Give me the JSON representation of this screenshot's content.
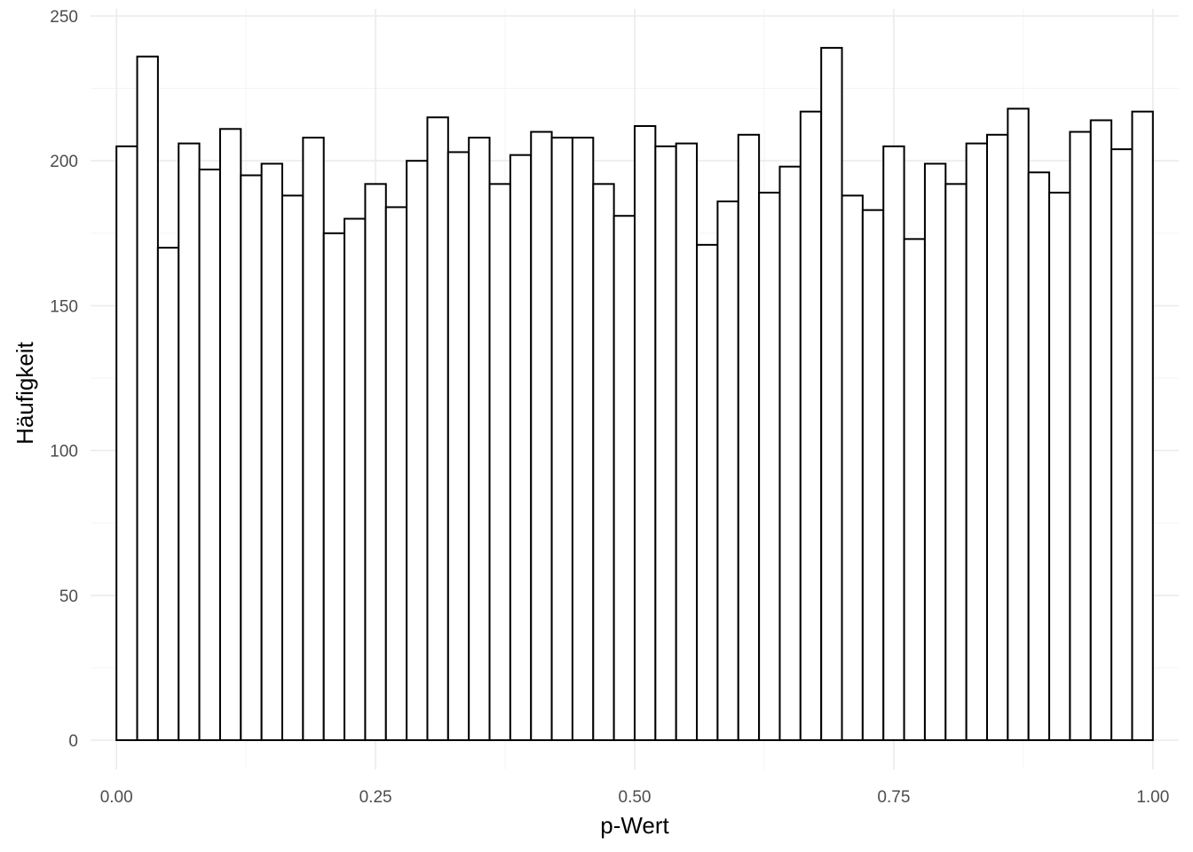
{
  "chart_data": {
    "type": "bar",
    "subtype": "histogram",
    "xlabel": "p-Wert",
    "ylabel": "Häufigkeit",
    "xlim": [
      -0.025,
      1.025
    ],
    "ylim": [
      0,
      250
    ],
    "bin_width": 0.02,
    "bin_centers": [
      0.01,
      0.03,
      0.05,
      0.07,
      0.09,
      0.11,
      0.13,
      0.15,
      0.17,
      0.19,
      0.21,
      0.23,
      0.25,
      0.27,
      0.29,
      0.31,
      0.33,
      0.35,
      0.37,
      0.39,
      0.41,
      0.43,
      0.45,
      0.47,
      0.49,
      0.51,
      0.53,
      0.55,
      0.57,
      0.59,
      0.61,
      0.63,
      0.65,
      0.67,
      0.69,
      0.71,
      0.73,
      0.75,
      0.77,
      0.79,
      0.81,
      0.83,
      0.85,
      0.87,
      0.89,
      0.91,
      0.93,
      0.95,
      0.97,
      0.99
    ],
    "values": [
      205,
      236,
      170,
      206,
      197,
      211,
      195,
      199,
      188,
      208,
      175,
      180,
      192,
      184,
      200,
      215,
      203,
      208,
      192,
      202,
      210,
      208,
      208,
      192,
      181,
      212,
      205,
      206,
      171,
      186,
      209,
      189,
      198,
      217,
      239,
      188,
      183,
      205,
      173,
      199,
      192,
      206,
      209,
      218,
      196,
      189,
      210,
      214,
      204,
      217
    ],
    "x_ticks": [
      0,
      0.25,
      0.5,
      0.75,
      1
    ],
    "x_tick_labels": [
      "0.00",
      "0.25",
      "0.50",
      "0.75",
      "1.00"
    ],
    "y_ticks": [
      0,
      50,
      100,
      150,
      200,
      250
    ],
    "y_tick_labels": [
      "0",
      "50",
      "100",
      "150",
      "200",
      "250"
    ],
    "grid": true,
    "legend": "none",
    "colors": {
      "bar_fill": "#ffffff",
      "bar_outline": "#000000",
      "grid": "#ebebeb"
    }
  }
}
